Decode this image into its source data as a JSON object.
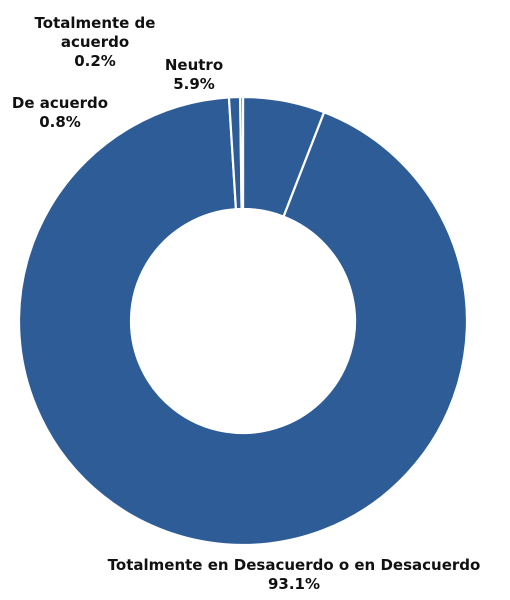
{
  "chart_data": {
    "type": "pie",
    "donut": true,
    "title": "",
    "legend": "none",
    "colors": {
      "slice": "#2d5c97",
      "separator": "#ffffff",
      "label": "#111111"
    },
    "slices": [
      {
        "label": "Neutro",
        "label_lines": [
          "Neutro"
        ],
        "value": 5.9,
        "value_text": "5.9%"
      },
      {
        "label": "Totalmente en Desacuerdo o en Desacuerdo",
        "label_lines": [
          "Totalmente en Desacuerdo o en Desacuerdo"
        ],
        "value": 93.1,
        "value_text": "93.1%"
      },
      {
        "label": "De acuerdo",
        "label_lines": [
          "De acuerdo"
        ],
        "value": 0.8,
        "value_text": "0.8%"
      },
      {
        "label": "Totalmente de acuerdo",
        "label_lines": [
          "Totalmente de",
          "acuerdo"
        ],
        "value": 0.2,
        "value_text": "0.2%"
      }
    ]
  }
}
